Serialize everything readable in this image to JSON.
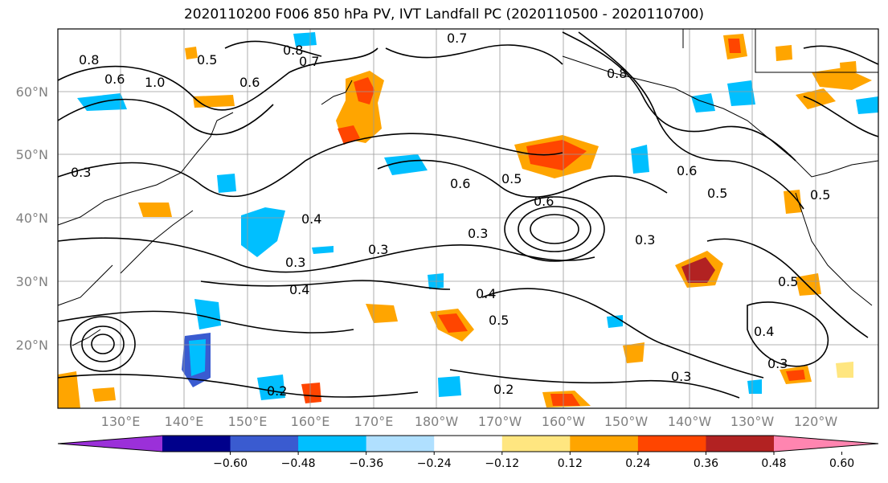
{
  "title": "2020110200 F006 850 hPa PV, IVT Landfall PC (2020110500 - 2020110700)",
  "lat_labels": [
    "60°N",
    "50°N",
    "40°N",
    "30°N",
    "20°N"
  ],
  "lon_labels": [
    "130°E",
    "140°E",
    "150°E",
    "160°E",
    "170°E",
    "180°W",
    "170°W",
    "160°W",
    "150°W",
    "140°W",
    "130°W",
    "120°W"
  ],
  "colorbar": {
    "ticks": [
      "−0.60",
      "−0.48",
      "−0.36",
      "−0.24",
      "−0.12",
      "0.12",
      "0.24",
      "0.36",
      "0.48",
      "0.60"
    ],
    "colors": [
      "#9b30d9",
      "#00008b",
      "#3a5bd0",
      "#00bfff",
      "#b0e0ff",
      "#ffffff",
      "#ffe680",
      "#ffa500",
      "#ff4500",
      "#b22222",
      "#ff85b0"
    ]
  },
  "contour_labels": [
    "1.0",
    "0.8",
    "0.7",
    "0.6",
    "0.5",
    "0.6",
    "0.8",
    "0.3",
    "0.3",
    "0.4",
    "0.3",
    "0.4",
    "0.6",
    "0.5",
    "0.6",
    "0.3",
    "0.8",
    "0.3",
    "0.4",
    "0.5",
    "0.2",
    "0.2",
    "0.5",
    "0.4",
    "0.3",
    "0.3",
    "0.5",
    "0.7",
    "0.5",
    "0.6"
  ]
}
